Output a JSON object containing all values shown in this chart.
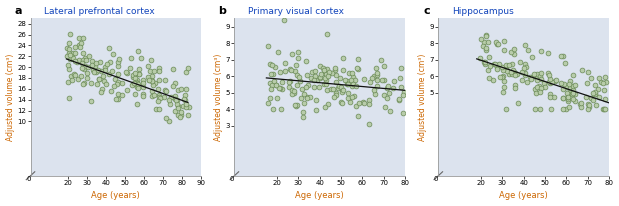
{
  "panel_a": {
    "label": "a",
    "title": "Lateral prefrontal cortex",
    "xlabel": "Age (years)",
    "ylabel": "Adjusted volume (cm³)",
    "xlim": [
      0,
      90
    ],
    "ylim": [
      0,
      29
    ],
    "xticks": [
      20,
      30,
      40,
      50,
      60,
      70,
      80,
      90
    ],
    "yticks": [
      10,
      12,
      14,
      16,
      18,
      20,
      22,
      24,
      26,
      28
    ],
    "trend_x": [
      19,
      83
    ],
    "trend_y": [
      21.5,
      13.5
    ]
  },
  "panel_b": {
    "label": "b",
    "title": "Primary visual cortex",
    "xlabel": "Age (years)",
    "ylabel": "Adjusted volume (cm³)",
    "xlim": [
      0,
      80
    ],
    "ylim": [
      0,
      9.5
    ],
    "xticks": [
      20,
      30,
      40,
      50,
      60,
      70,
      80
    ],
    "yticks": [
      3,
      4,
      5,
      6,
      7,
      8,
      9
    ],
    "trend_x": [
      15,
      80
    ],
    "trend_y": [
      5.9,
      5.15
    ]
  },
  "panel_c": {
    "label": "c",
    "title": "Hippocampus",
    "xlabel": "Age (years)",
    "ylabel": "Adjusted volume (cm³)",
    "xlim": [
      0,
      80
    ],
    "ylim": [
      0,
      9.5
    ],
    "xticks": [
      20,
      30,
      40,
      50,
      60,
      70,
      80
    ],
    "yticks": [
      5,
      6,
      7,
      8,
      9
    ],
    "trend_x": [
      18,
      80
    ],
    "trend_y": [
      7.05,
      4.4
    ]
  },
  "bg_color": "#dce3ee",
  "scatter_facecolor": "#b8ccaa",
  "scatter_edgecolor": "#6a8a55",
  "scatter_size": 12,
  "trend_color": "#111111",
  "title_color": "#1144bb",
  "axis_label_color": "#cc6600"
}
